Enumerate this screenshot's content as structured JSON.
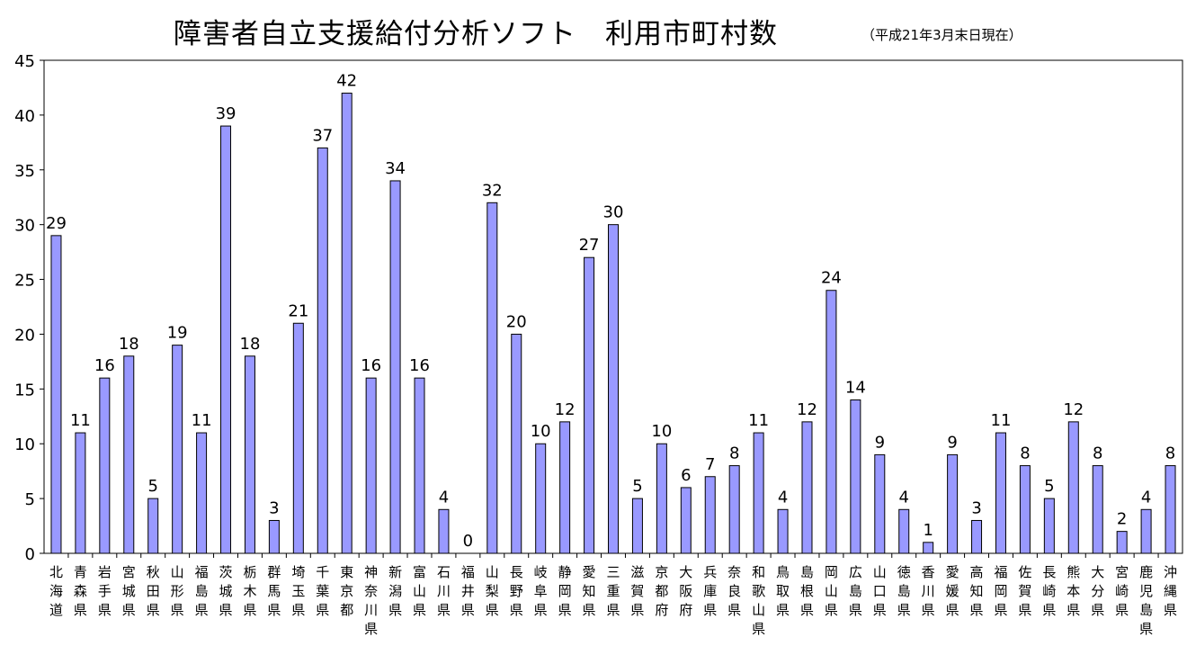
{
  "chart_data": {
    "type": "bar",
    "title": "障害者自立支援給付分析ソフト　利用市町村数",
    "subtitle": "（平成21年3月末日現在）",
    "xlabel": "",
    "ylabel": "",
    "ylim": [
      0,
      45
    ],
    "yticks": [
      0,
      5,
      10,
      15,
      20,
      25,
      30,
      35,
      40,
      45
    ],
    "grid": false,
    "bar_color": "#9999ff",
    "categories": [
      "北海道",
      "青森県",
      "岩手県",
      "宮城県",
      "秋田県",
      "山形県",
      "福島県",
      "茨城県",
      "栃木県",
      "群馬県",
      "埼玉県",
      "千葉県",
      "東京都",
      "神奈川県",
      "新潟県",
      "富山県",
      "石川県",
      "福井県",
      "山梨県",
      "長野県",
      "岐阜県",
      "静岡県",
      "愛知県",
      "三重県",
      "滋賀県",
      "京都府",
      "大阪府",
      "兵庫県",
      "奈良県",
      "和歌山県",
      "鳥取県",
      "島根県",
      "岡山県",
      "広島県",
      "山口県",
      "徳島県",
      "香川県",
      "愛媛県",
      "高知県",
      "福岡県",
      "佐賀県",
      "長崎県",
      "熊本県",
      "大分県",
      "宮崎県",
      "鹿児島県",
      "沖縄県"
    ],
    "values": [
      29,
      11,
      16,
      18,
      5,
      19,
      11,
      39,
      18,
      3,
      21,
      37,
      42,
      16,
      34,
      16,
      4,
      0,
      32,
      20,
      10,
      12,
      27,
      30,
      5,
      10,
      6,
      7,
      8,
      11,
      4,
      12,
      24,
      14,
      9,
      4,
      1,
      9,
      3,
      11,
      8,
      5,
      12,
      8,
      2,
      4,
      8
    ]
  }
}
